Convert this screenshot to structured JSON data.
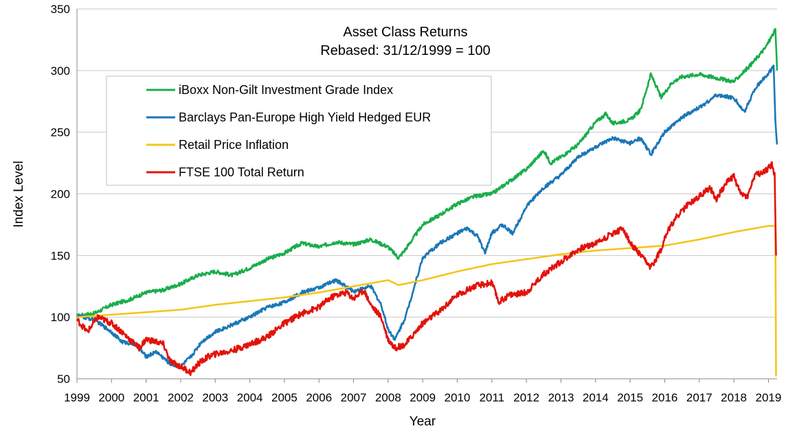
{
  "chart_data": {
    "type": "line",
    "title": "Asset Class Returns",
    "subtitle": "Rebased: 31/12/1999 = 100",
    "xlabel": "Year",
    "ylabel": "Index Level",
    "xlim": [
      1999.0,
      2019.25
    ],
    "ylim": [
      50,
      350
    ],
    "yticks": [
      50,
      100,
      150,
      200,
      250,
      300,
      350
    ],
    "xticks": [
      "1999",
      "2000",
      "2001",
      "2002",
      "2003",
      "2004",
      "2005",
      "2006",
      "2007",
      "2008",
      "2009",
      "2010",
      "2011",
      "2012",
      "2013",
      "2014",
      "2015",
      "2016",
      "2017",
      "2018",
      "2019"
    ],
    "grid": "horizontal",
    "legend_position": "upper-left",
    "series": [
      {
        "name": "iBoxx Non-Gilt Investment Grade Index",
        "color": "#1aad4b",
        "points": [
          [
            1999.0,
            101
          ],
          [
            1999.5,
            103
          ],
          [
            2000.0,
            110
          ],
          [
            2000.5,
            114
          ],
          [
            2001.0,
            120
          ],
          [
            2001.5,
            122
          ],
          [
            2002.0,
            127
          ],
          [
            2002.5,
            134
          ],
          [
            2003.0,
            137
          ],
          [
            2003.5,
            134
          ],
          [
            2004.0,
            140
          ],
          [
            2004.5,
            147
          ],
          [
            2005.0,
            152
          ],
          [
            2005.5,
            160
          ],
          [
            2006.0,
            157
          ],
          [
            2006.5,
            161
          ],
          [
            2007.0,
            159
          ],
          [
            2007.5,
            163
          ],
          [
            2008.0,
            157
          ],
          [
            2008.3,
            148
          ],
          [
            2008.5,
            155
          ],
          [
            2009.0,
            175
          ],
          [
            2009.5,
            183
          ],
          [
            2010.0,
            192
          ],
          [
            2010.5,
            198
          ],
          [
            2011.0,
            200
          ],
          [
            2011.5,
            210
          ],
          [
            2012.0,
            220
          ],
          [
            2012.5,
            235
          ],
          [
            2012.7,
            225
          ],
          [
            2013.0,
            230
          ],
          [
            2013.5,
            240
          ],
          [
            2014.0,
            258
          ],
          [
            2014.3,
            265
          ],
          [
            2014.5,
            257
          ],
          [
            2015.0,
            260
          ],
          [
            2015.3,
            268
          ],
          [
            2015.6,
            297
          ],
          [
            2015.9,
            278
          ],
          [
            2016.2,
            290
          ],
          [
            2016.5,
            295
          ],
          [
            2017.0,
            297
          ],
          [
            2017.5,
            294
          ],
          [
            2018.0,
            291
          ],
          [
            2018.5,
            305
          ],
          [
            2018.9,
            318
          ],
          [
            2019.1,
            328
          ],
          [
            2019.2,
            333
          ],
          [
            2019.25,
            300
          ]
        ]
      },
      {
        "name": "Barclays Pan-Europe High Yield Hedged EUR",
        "color": "#1b77b7",
        "points": [
          [
            1999.0,
            101
          ],
          [
            1999.5,
            98
          ],
          [
            2000.0,
            88
          ],
          [
            2000.3,
            80
          ],
          [
            2000.7,
            78
          ],
          [
            2001.0,
            68
          ],
          [
            2001.3,
            72
          ],
          [
            2001.7,
            62
          ],
          [
            2002.0,
            60
          ],
          [
            2002.3,
            68
          ],
          [
            2002.6,
            80
          ],
          [
            2003.0,
            88
          ],
          [
            2003.5,
            94
          ],
          [
            2004.0,
            100
          ],
          [
            2004.5,
            108
          ],
          [
            2005.0,
            112
          ],
          [
            2005.5,
            120
          ],
          [
            2006.0,
            124
          ],
          [
            2006.5,
            130
          ],
          [
            2007.0,
            121
          ],
          [
            2007.5,
            125
          ],
          [
            2007.8,
            110
          ],
          [
            2008.0,
            90
          ],
          [
            2008.2,
            82
          ],
          [
            2008.5,
            100
          ],
          [
            2009.0,
            148
          ],
          [
            2009.5,
            160
          ],
          [
            2010.0,
            168
          ],
          [
            2010.3,
            172
          ],
          [
            2010.6,
            165
          ],
          [
            2010.8,
            152
          ],
          [
            2011.0,
            168
          ],
          [
            2011.3,
            175
          ],
          [
            2011.6,
            168
          ],
          [
            2012.0,
            190
          ],
          [
            2012.5,
            205
          ],
          [
            2013.0,
            215
          ],
          [
            2013.5,
            230
          ],
          [
            2014.0,
            238
          ],
          [
            2014.5,
            245
          ],
          [
            2015.0,
            241
          ],
          [
            2015.3,
            245
          ],
          [
            2015.6,
            232
          ],
          [
            2016.0,
            250
          ],
          [
            2016.5,
            262
          ],
          [
            2017.0,
            270
          ],
          [
            2017.5,
            280
          ],
          [
            2018.0,
            278
          ],
          [
            2018.3,
            266
          ],
          [
            2018.6,
            285
          ],
          [
            2019.0,
            298
          ],
          [
            2019.15,
            303
          ],
          [
            2019.2,
            260
          ],
          [
            2019.25,
            240
          ]
        ]
      },
      {
        "name": "Retail Price Inflation",
        "color": "#f5c518",
        "points": [
          [
            1999.0,
            100
          ],
          [
            2000.0,
            102
          ],
          [
            2001.0,
            104
          ],
          [
            2002.0,
            106
          ],
          [
            2003.0,
            110
          ],
          [
            2004.0,
            113
          ],
          [
            2005.0,
            116
          ],
          [
            2006.0,
            120
          ],
          [
            2007.0,
            125
          ],
          [
            2008.0,
            130
          ],
          [
            2008.3,
            126
          ],
          [
            2009.0,
            130
          ],
          [
            2010.0,
            137
          ],
          [
            2011.0,
            143
          ],
          [
            2012.0,
            147
          ],
          [
            2013.0,
            151
          ],
          [
            2014.0,
            154
          ],
          [
            2015.0,
            156
          ],
          [
            2016.0,
            158
          ],
          [
            2017.0,
            163
          ],
          [
            2018.0,
            169
          ],
          [
            2019.0,
            174
          ],
          [
            2019.2,
            174
          ],
          [
            2019.22,
            52
          ]
        ]
      },
      {
        "name": "FTSE 100 Total Return",
        "color": "#e3120b",
        "points": [
          [
            1999.0,
            98
          ],
          [
            1999.3,
            88
          ],
          [
            1999.6,
            100
          ],
          [
            2000.0,
            95
          ],
          [
            2000.3,
            88
          ],
          [
            2000.6,
            80
          ],
          [
            2000.8,
            75
          ],
          [
            2001.0,
            82
          ],
          [
            2001.3,
            80
          ],
          [
            2001.5,
            78
          ],
          [
            2001.7,
            64
          ],
          [
            2002.0,
            60
          ],
          [
            2002.3,
            55
          ],
          [
            2002.5,
            62
          ],
          [
            2002.8,
            68
          ],
          [
            2003.0,
            70
          ],
          [
            2003.5,
            73
          ],
          [
            2004.0,
            78
          ],
          [
            2004.5,
            84
          ],
          [
            2005.0,
            95
          ],
          [
            2005.5,
            103
          ],
          [
            2006.0,
            108
          ],
          [
            2006.3,
            115
          ],
          [
            2006.5,
            118
          ],
          [
            2006.8,
            120
          ],
          [
            2007.0,
            115
          ],
          [
            2007.3,
            122
          ],
          [
            2007.5,
            110
          ],
          [
            2007.8,
            100
          ],
          [
            2008.0,
            82
          ],
          [
            2008.2,
            75
          ],
          [
            2008.5,
            78
          ],
          [
            2009.0,
            95
          ],
          [
            2009.5,
            105
          ],
          [
            2010.0,
            118
          ],
          [
            2010.5,
            125
          ],
          [
            2011.0,
            128
          ],
          [
            2011.2,
            112
          ],
          [
            2011.5,
            118
          ],
          [
            2012.0,
            120
          ],
          [
            2012.5,
            135
          ],
          [
            2013.0,
            145
          ],
          [
            2013.5,
            155
          ],
          [
            2014.0,
            160
          ],
          [
            2014.5,
            168
          ],
          [
            2014.8,
            172
          ],
          [
            2015.0,
            160
          ],
          [
            2015.3,
            150
          ],
          [
            2015.6,
            140
          ],
          [
            2015.9,
            155
          ],
          [
            2016.0,
            165
          ],
          [
            2016.3,
            180
          ],
          [
            2016.7,
            192
          ],
          [
            2017.0,
            198
          ],
          [
            2017.3,
            205
          ],
          [
            2017.5,
            196
          ],
          [
            2017.8,
            210
          ],
          [
            2018.0,
            214
          ],
          [
            2018.2,
            200
          ],
          [
            2018.4,
            198
          ],
          [
            2018.6,
            215
          ],
          [
            2018.9,
            218
          ],
          [
            2019.1,
            224
          ],
          [
            2019.18,
            215
          ],
          [
            2019.22,
            150
          ]
        ]
      }
    ]
  }
}
